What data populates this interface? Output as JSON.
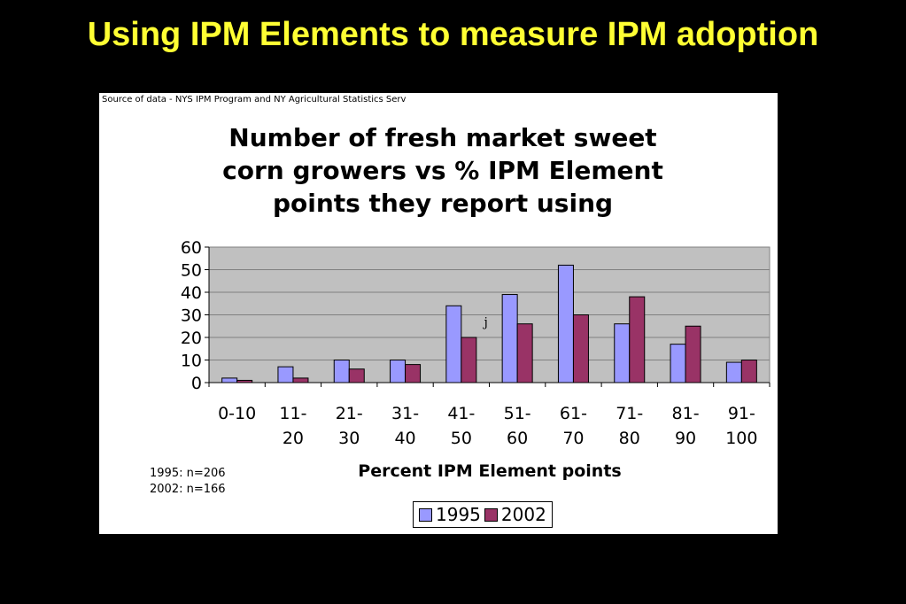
{
  "slide": {
    "title": "Using IPM Elements to measure IPM adoption"
  },
  "chart_data": {
    "type": "bar",
    "source_note": "Source of data - NYS IPM Program and NY Agricultural Statistics Serv",
    "title_lines": [
      "Number of fresh market sweet",
      "corn growers vs % IPM Element",
      "points they report using"
    ],
    "categories": [
      [
        "0-10"
      ],
      [
        "11-",
        "20"
      ],
      [
        "21-",
        "30"
      ],
      [
        "31-",
        "40"
      ],
      [
        "41-",
        "50"
      ],
      [
        "51-",
        "60"
      ],
      [
        "61-",
        "70"
      ],
      [
        "71-",
        "80"
      ],
      [
        "81-",
        "90"
      ],
      [
        "91-",
        "100"
      ]
    ],
    "series": [
      {
        "name": "1995",
        "color": "#9999ff",
        "values": [
          2,
          7,
          10,
          10,
          34,
          39,
          52,
          26,
          17,
          9
        ]
      },
      {
        "name": "2002",
        "color": "#993366",
        "values": [
          1,
          2,
          6,
          8,
          20,
          26,
          30,
          38,
          25,
          10
        ]
      }
    ],
    "xlabel": "Percent IPM Element points",
    "ylabel": "",
    "ylim": [
      0,
      60
    ],
    "yticks": [
      0,
      10,
      20,
      30,
      40,
      50,
      60
    ],
    "grid": true,
    "plot_background": "#c0c0c0",
    "stray_mark": "j",
    "notes": [
      "1995: n=206",
      "2002: n=166"
    ],
    "legend_position": "bottom"
  }
}
